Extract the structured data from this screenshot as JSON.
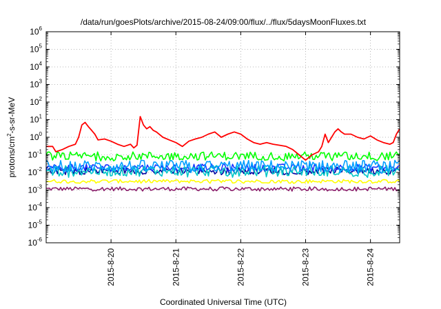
{
  "chart_data": {
    "type": "line",
    "title": "/data/run/goesPlots/archive/2015-08-24/09:00/flux/../flux/5daysMoonFluxes.txt",
    "xlabel": "Coordinated Universal Time (UTC)",
    "ylabel_parts": [
      "protons/cm",
      "2",
      "-s-sr-MeV"
    ],
    "yscale": "log",
    "ylim_exp": [
      -6,
      6
    ],
    "y_tick_base": "10",
    "y_tick_exponents": [
      "-6",
      "-5",
      "-4",
      "-3",
      "-2",
      "-1",
      "0",
      "1",
      "2",
      "3",
      "4",
      "5",
      "6"
    ],
    "xlim_days": [
      0,
      5.45
    ],
    "x_ticks": [
      {
        "label": "2015-8-20",
        "day": 1
      },
      {
        "label": "2015-8-21",
        "day": 2
      },
      {
        "label": "2015-8-22",
        "day": 3
      },
      {
        "label": "2015-8-23",
        "day": 4
      },
      {
        "label": "2015-8-24",
        "day": 5
      }
    ],
    "grid": true,
    "legend": "none",
    "series": [
      {
        "color": "#ff0000",
        "x": [
          0,
          0.1,
          0.15,
          0.25,
          0.35,
          0.45,
          0.5,
          0.55,
          0.6,
          0.65,
          0.7,
          0.75,
          0.8,
          0.9,
          1.0,
          1.1,
          1.2,
          1.3,
          1.35,
          1.4,
          1.45,
          1.5,
          1.55,
          1.6,
          1.65,
          1.7,
          1.8,
          1.9,
          2.0,
          2.1,
          2.2,
          2.3,
          2.4,
          2.5,
          2.6,
          2.7,
          2.8,
          2.9,
          3.0,
          3.1,
          3.2,
          3.3,
          3.4,
          3.5,
          3.6,
          3.7,
          3.8,
          3.9,
          4.0,
          4.1,
          4.2,
          4.25,
          4.3,
          4.35,
          4.4,
          4.45,
          4.5,
          4.55,
          4.6,
          4.7,
          4.8,
          4.9,
          5.0,
          5.1,
          5.2,
          5.3,
          5.35,
          5.4,
          5.45
        ],
        "values": [
          0.3,
          0.3,
          0.15,
          0.2,
          0.3,
          0.4,
          1.0,
          5.0,
          7.0,
          4.0,
          2.5,
          1.5,
          0.7,
          0.8,
          0.6,
          0.4,
          0.3,
          0.4,
          0.25,
          0.35,
          15.0,
          5.0,
          3.0,
          4.0,
          2.5,
          2.0,
          1.0,
          0.7,
          0.5,
          0.3,
          0.6,
          0.8,
          1.0,
          1.5,
          2.0,
          1.0,
          1.5,
          2.0,
          1.5,
          0.8,
          0.5,
          0.4,
          0.5,
          0.4,
          0.35,
          0.3,
          0.2,
          0.1,
          0.05,
          0.1,
          0.15,
          0.3,
          1.5,
          0.5,
          1.0,
          2.0,
          3.0,
          2.0,
          1.5,
          1.5,
          1.0,
          0.8,
          1.2,
          0.7,
          0.5,
          0.4,
          0.5,
          1.5,
          3.0
        ]
      },
      {
        "color": "#00ff00",
        "band": [
          0.05,
          0.15
        ]
      },
      {
        "color": "#009fff",
        "band": [
          0.01,
          0.05
        ]
      },
      {
        "color": "#00c8c8",
        "band": [
          0.006,
          0.025
        ]
      },
      {
        "color": "#1a33ff",
        "band": [
          0.012,
          0.03
        ]
      },
      {
        "color": "#0000a0",
        "band": [
          0.008,
          0.02
        ]
      },
      {
        "color": "#ffff00",
        "band": [
          0.0025,
          0.004
        ]
      },
      {
        "color": "#8b1e6b",
        "band": [
          0.0009,
          0.0015
        ]
      }
    ]
  }
}
